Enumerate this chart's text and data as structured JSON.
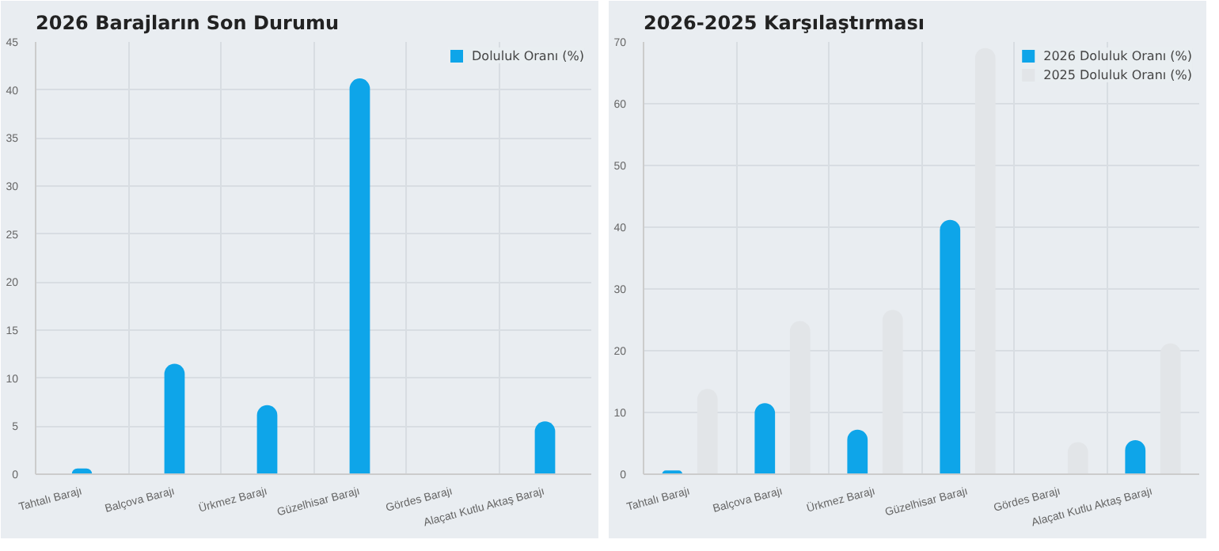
{
  "chart_data": [
    {
      "type": "bar",
      "title": "2026 Barajların Son Durumu",
      "categories": [
        "Tahtalı Barajı",
        "Balçova Barajı",
        "Ürkmez Barajı",
        "Güzelhisar Barajı",
        "Gördes Barajı",
        "Alaçatı Kutlu Aktaş Barajı"
      ],
      "series": [
        {
          "name": "Doluluk Oranı (%)",
          "color": "#0ea5e9",
          "values": [
            0.6,
            11.5,
            7.2,
            41.2,
            0,
            5.5
          ]
        }
      ],
      "ylim": [
        0,
        45
      ],
      "yticks": [
        0,
        5,
        10,
        15,
        20,
        25,
        30,
        35,
        40,
        45
      ],
      "grid": true,
      "legend": "top right"
    },
    {
      "type": "bar",
      "title": "2026-2025 Karşılaştırması",
      "categories": [
        "Tahtalı Barajı",
        "Balçova Barajı",
        "Ürkmez Barajı",
        "Güzelhisar Barajı",
        "Gördes Barajı",
        "Alaçatı Kutlu Aktaş Barajı"
      ],
      "series": [
        {
          "name": "2026 Doluluk Oranı (%)",
          "color": "#0ea5e9",
          "values": [
            0.6,
            11.5,
            7.2,
            41.2,
            0,
            5.5
          ]
        },
        {
          "name": "2025 Doluluk Oranı (%)",
          "color": "#e2e5e8",
          "values": [
            13.8,
            24.8,
            26.6,
            69,
            5.2,
            21.2
          ]
        }
      ],
      "ylim": [
        0,
        70
      ],
      "yticks": [
        0,
        10,
        20,
        30,
        40,
        50,
        60,
        70
      ],
      "grid": true,
      "legend": "top right"
    }
  ]
}
